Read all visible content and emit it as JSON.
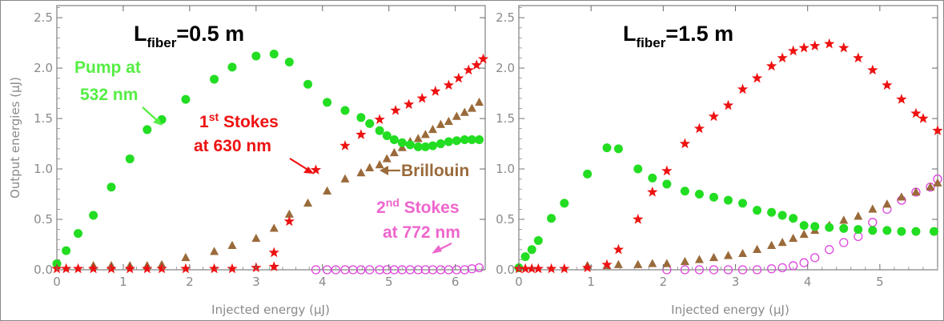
{
  "chart_data": [
    {
      "type": "scatter",
      "title_main": "L",
      "title_sub": "fiber",
      "title_rest": "=0.5 m",
      "xlabel": "Injected energy (μJ)",
      "ylabel": "Output energies (μJ)",
      "xlim": [
        0,
        6.45
      ],
      "ylim": [
        0,
        2.62
      ],
      "x_ticks": [
        "0",
        "1",
        "2",
        "3",
        "4",
        "5",
        "6"
      ],
      "y_ticks": [
        "0.0",
        "0.5",
        "1.0",
        "1.5",
        "2.0",
        "2.5"
      ],
      "grid": false,
      "series": [
        {
          "name": "Pump at 532 nm",
          "marker": "circle",
          "color": "#22dd22",
          "points": [
            [
              0.0,
              0.06
            ],
            [
              0.14,
              0.19
            ],
            [
              0.32,
              0.36
            ],
            [
              0.55,
              0.54
            ],
            [
              0.82,
              0.82
            ],
            [
              1.1,
              1.1
            ],
            [
              1.36,
              1.39
            ],
            [
              1.58,
              1.49
            ],
            [
              1.94,
              1.69
            ],
            [
              2.37,
              1.89
            ],
            [
              2.64,
              2.01
            ],
            [
              3.0,
              2.12
            ],
            [
              3.27,
              2.14
            ],
            [
              3.5,
              2.06
            ],
            [
              3.78,
              1.84
            ],
            [
              4.07,
              1.66
            ],
            [
              4.34,
              1.58
            ],
            [
              4.58,
              1.51
            ],
            [
              4.71,
              1.45
            ],
            [
              4.86,
              1.38
            ],
            [
              4.97,
              1.33
            ],
            [
              5.08,
              1.29
            ],
            [
              5.2,
              1.26
            ],
            [
              5.32,
              1.24
            ],
            [
              5.44,
              1.22
            ],
            [
              5.55,
              1.22
            ],
            [
              5.66,
              1.23
            ],
            [
              5.78,
              1.25
            ],
            [
              5.9,
              1.27
            ],
            [
              6.02,
              1.28
            ],
            [
              6.14,
              1.29
            ],
            [
              6.25,
              1.29
            ],
            [
              6.36,
              1.29
            ]
          ]
        },
        {
          "name": "1st Stokes at 630 nm",
          "marker": "star",
          "color": "#ee1111",
          "points": [
            [
              0.0,
              0.01
            ],
            [
              0.14,
              0.01
            ],
            [
              0.32,
              0.01
            ],
            [
              0.55,
              0.01
            ],
            [
              0.82,
              0.01
            ],
            [
              1.1,
              0.01
            ],
            [
              1.36,
              0.01
            ],
            [
              1.58,
              0.01
            ],
            [
              1.94,
              0.01
            ],
            [
              2.37,
              0.01
            ],
            [
              2.64,
              0.01
            ],
            [
              3.0,
              0.02
            ],
            [
              3.27,
              0.03
            ],
            [
              3.27,
              0.17
            ],
            [
              3.5,
              0.48
            ],
            [
              3.9,
              0.99
            ],
            [
              4.34,
              1.23
            ],
            [
              4.58,
              1.34
            ],
            [
              4.86,
              1.49
            ],
            [
              5.1,
              1.58
            ],
            [
              5.3,
              1.64
            ],
            [
              5.5,
              1.7
            ],
            [
              5.7,
              1.77
            ],
            [
              5.9,
              1.83
            ],
            [
              6.05,
              1.9
            ],
            [
              6.2,
              1.98
            ],
            [
              6.32,
              2.03
            ],
            [
              6.42,
              2.09
            ]
          ]
        },
        {
          "name": "Brillouin",
          "marker": "triangle",
          "color": "#9a6a3a",
          "points": [
            [
              0.55,
              0.04
            ],
            [
              0.82,
              0.04
            ],
            [
              1.1,
              0.04
            ],
            [
              1.36,
              0.04
            ],
            [
              1.58,
              0.05
            ],
            [
              1.94,
              0.12
            ],
            [
              2.37,
              0.18
            ],
            [
              2.64,
              0.24
            ],
            [
              3.0,
              0.31
            ],
            [
              3.27,
              0.41
            ],
            [
              3.5,
              0.55
            ],
            [
              3.78,
              0.66
            ],
            [
              4.07,
              0.78
            ],
            [
              4.34,
              0.9
            ],
            [
              4.58,
              0.96
            ],
            [
              4.71,
              1.01
            ],
            [
              4.86,
              1.04
            ],
            [
              4.97,
              1.1
            ],
            [
              5.08,
              1.16
            ],
            [
              5.2,
              1.21
            ],
            [
              5.32,
              1.27
            ],
            [
              5.44,
              1.3
            ],
            [
              5.55,
              1.34
            ],
            [
              5.66,
              1.39
            ],
            [
              5.78,
              1.44
            ],
            [
              5.9,
              1.47
            ],
            [
              6.02,
              1.52
            ],
            [
              6.14,
              1.56
            ],
            [
              6.25,
              1.6
            ],
            [
              6.36,
              1.66
            ]
          ]
        },
        {
          "name": "2nd Stokes at 772 nm",
          "marker": "open-circle",
          "color": "#dd44dd",
          "points": [
            [
              3.9,
              0.0
            ],
            [
              4.07,
              0.0
            ],
            [
              4.2,
              0.0
            ],
            [
              4.34,
              0.0
            ],
            [
              4.46,
              0.0
            ],
            [
              4.58,
              0.0
            ],
            [
              4.71,
              0.0
            ],
            [
              4.86,
              0.0
            ],
            [
              4.97,
              0.0
            ],
            [
              5.08,
              0.0
            ],
            [
              5.2,
              0.0
            ],
            [
              5.32,
              0.0
            ],
            [
              5.44,
              0.0
            ],
            [
              5.55,
              0.0
            ],
            [
              5.66,
              0.0
            ],
            [
              5.78,
              0.0
            ],
            [
              5.9,
              0.0
            ],
            [
              6.02,
              0.0
            ],
            [
              6.14,
              0.0
            ],
            [
              6.25,
              0.01
            ],
            [
              6.36,
              0.02
            ]
          ]
        }
      ],
      "annotations": {
        "pump_line1": "Pump at",
        "pump_line2": "532 nm",
        "stokes1_num": "1",
        "stokes1_sup": "st",
        "stokes1_line1_rest": " Stokes",
        "stokes1_line2": "at 630 nm",
        "brillouin": "Brillouin",
        "stokes2_num": "2",
        "stokes2_sup": "nd",
        "stokes2_line1_rest": " Stokes",
        "stokes2_line2": "at 772 nm",
        "pump_color": "#55ee44",
        "stokes1_color": "#ee1111",
        "brillouin_color": "#9a6a3a",
        "stokes2_color": "#ee66cc"
      }
    },
    {
      "type": "scatter",
      "title_main": "L",
      "title_sub": "fiber",
      "title_rest": "=1.5 m",
      "xlabel": "Injected energy (μJ)",
      "ylabel": "",
      "xlim": [
        0,
        5.8
      ],
      "ylim": [
        0,
        2.62
      ],
      "x_ticks": [
        "0",
        "1",
        "2",
        "3",
        "4",
        "5"
      ],
      "y_ticks": [
        "0.0",
        "0.5",
        "1.0",
        "1.5",
        "2.0",
        "2.5"
      ],
      "grid": false,
      "series": [
        {
          "name": "Pump at 532 nm",
          "marker": "circle",
          "color": "#22dd22",
          "points": [
            [
              0.0,
              0.02
            ],
            [
              0.09,
              0.13
            ],
            [
              0.18,
              0.2
            ],
            [
              0.27,
              0.29
            ],
            [
              0.45,
              0.51
            ],
            [
              0.63,
              0.66
            ],
            [
              0.95,
              0.95
            ],
            [
              1.22,
              1.21
            ],
            [
              1.38,
              1.2
            ],
            [
              1.65,
              1.0
            ],
            [
              1.85,
              0.91
            ],
            [
              2.05,
              0.85
            ],
            [
              2.3,
              0.78
            ],
            [
              2.5,
              0.75
            ],
            [
              2.7,
              0.72
            ],
            [
              2.9,
              0.69
            ],
            [
              3.1,
              0.66
            ],
            [
              3.3,
              0.59
            ],
            [
              3.5,
              0.57
            ],
            [
              3.65,
              0.54
            ],
            [
              3.8,
              0.51
            ],
            [
              3.95,
              0.44
            ],
            [
              4.1,
              0.43
            ],
            [
              4.3,
              0.42
            ],
            [
              4.5,
              0.41
            ],
            [
              4.7,
              0.4
            ],
            [
              4.9,
              0.39
            ],
            [
              5.1,
              0.39
            ],
            [
              5.3,
              0.38
            ],
            [
              5.5,
              0.38
            ],
            [
              5.75,
              0.38
            ]
          ]
        },
        {
          "name": "1st Stokes at 630 nm",
          "marker": "star",
          "color": "#ee1111",
          "points": [
            [
              0.0,
              0.01
            ],
            [
              0.09,
              0.01
            ],
            [
              0.18,
              0.01
            ],
            [
              0.27,
              0.01
            ],
            [
              0.45,
              0.01
            ],
            [
              0.63,
              0.01
            ],
            [
              0.95,
              0.02
            ],
            [
              1.22,
              0.05
            ],
            [
              1.38,
              0.2
            ],
            [
              1.65,
              0.5
            ],
            [
              1.85,
              0.77
            ],
            [
              2.05,
              0.98
            ],
            [
              2.3,
              1.25
            ],
            [
              2.5,
              1.4
            ],
            [
              2.7,
              1.52
            ],
            [
              2.9,
              1.63
            ],
            [
              3.1,
              1.79
            ],
            [
              3.3,
              1.9
            ],
            [
              3.5,
              2.02
            ],
            [
              3.65,
              2.1
            ],
            [
              3.8,
              2.17
            ],
            [
              3.95,
              2.2
            ],
            [
              4.1,
              2.22
            ],
            [
              4.3,
              2.24
            ],
            [
              4.5,
              2.2
            ],
            [
              4.7,
              2.1
            ],
            [
              4.9,
              1.98
            ],
            [
              5.1,
              1.83
            ],
            [
              5.3,
              1.69
            ],
            [
              5.5,
              1.55
            ],
            [
              5.6,
              1.5
            ],
            [
              5.8,
              1.38
            ]
          ]
        },
        {
          "name": "Brillouin",
          "marker": "triangle",
          "color": "#9a6a3a",
          "points": [
            [
              0.95,
              0.04
            ],
            [
              1.22,
              0.04
            ],
            [
              1.38,
              0.05
            ],
            [
              1.65,
              0.05
            ],
            [
              1.85,
              0.06
            ],
            [
              2.05,
              0.06
            ],
            [
              2.3,
              0.08
            ],
            [
              2.5,
              0.1
            ],
            [
              2.7,
              0.12
            ],
            [
              2.9,
              0.14
            ],
            [
              3.1,
              0.16
            ],
            [
              3.3,
              0.2
            ],
            [
              3.5,
              0.24
            ],
            [
              3.65,
              0.27
            ],
            [
              3.8,
              0.31
            ],
            [
              3.95,
              0.35
            ],
            [
              4.1,
              0.39
            ],
            [
              4.3,
              0.44
            ],
            [
              4.5,
              0.49
            ],
            [
              4.7,
              0.53
            ],
            [
              4.9,
              0.6
            ],
            [
              5.1,
              0.65
            ],
            [
              5.3,
              0.72
            ],
            [
              5.5,
              0.77
            ],
            [
              5.7,
              0.82
            ],
            [
              5.8,
              0.86
            ]
          ]
        },
        {
          "name": "2nd Stokes at 772 nm",
          "marker": "open-circle",
          "color": "#dd44dd",
          "points": [
            [
              2.05,
              0.0
            ],
            [
              2.3,
              0.0
            ],
            [
              2.5,
              0.0
            ],
            [
              2.7,
              0.0
            ],
            [
              2.9,
              0.0
            ],
            [
              3.1,
              0.0
            ],
            [
              3.3,
              0.0
            ],
            [
              3.5,
              0.01
            ],
            [
              3.65,
              0.02
            ],
            [
              3.8,
              0.04
            ],
            [
              3.95,
              0.07
            ],
            [
              4.1,
              0.12
            ],
            [
              4.3,
              0.2
            ],
            [
              4.5,
              0.27
            ],
            [
              4.7,
              0.33
            ],
            [
              4.9,
              0.47
            ],
            [
              5.1,
              0.6
            ],
            [
              5.3,
              0.69
            ],
            [
              5.5,
              0.77
            ],
            [
              5.7,
              0.82
            ],
            [
              5.8,
              0.9
            ]
          ]
        }
      ]
    }
  ]
}
